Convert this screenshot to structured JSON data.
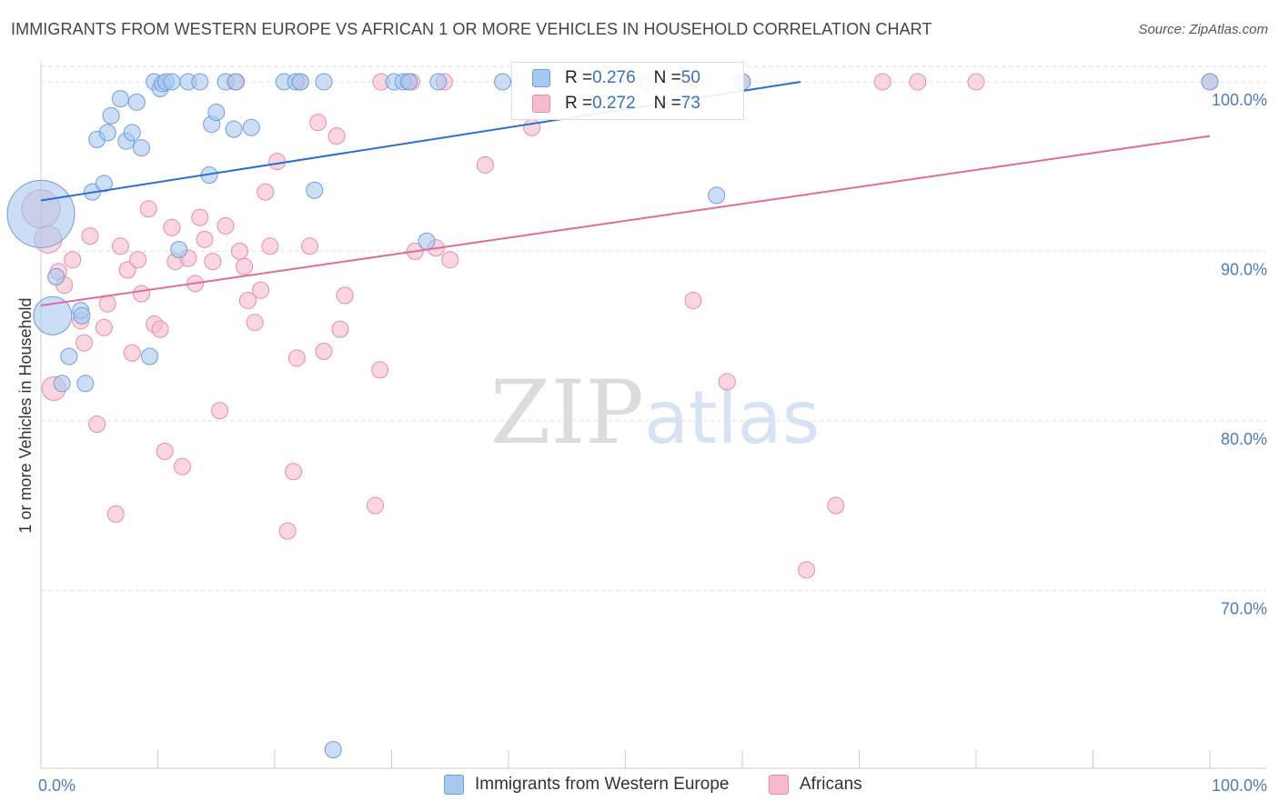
{
  "title": "IMMIGRANTS FROM WESTERN EUROPE VS AFRICAN 1 OR MORE VEHICLES IN HOUSEHOLD CORRELATION CHART",
  "source": "Source: ZipAtlas.com",
  "legend": {
    "rows": [
      {
        "r_label": "R = ",
        "r_value": "0.276",
        "n_label": "N = ",
        "n_value": "50"
      },
      {
        "r_label": "R = ",
        "r_value": "0.272",
        "n_label": "N = ",
        "n_value": "73"
      }
    ]
  },
  "bottom_legend": [
    "Immigrants from Western Europe",
    "Africans"
  ],
  "watermark": "ZIPatlas",
  "colors": {
    "blue_fill": "#a9c8ef",
    "blue_stroke": "#6d9ee0",
    "blue_line": "#2b6fcf",
    "pink_fill": "#f6bccb",
    "pink_stroke": "#e88ba6",
    "pink_line": "#e06c98",
    "grid": "#dddddd",
    "tick_text": "#4a7cc4"
  },
  "chart_data": {
    "type": "scatter",
    "title": "IMMIGRANTS FROM WESTERN EUROPE VS AFRICAN 1 OR MORE VEHICLES IN HOUSEHOLD CORRELATION CHART",
    "xlabel": "",
    "ylabel": "1 or more Vehicles in Household",
    "xlim": [
      0,
      100
    ],
    "ylim": [
      59.5,
      101.5
    ],
    "x_tick_labels": [
      "0.0%",
      "100.0%"
    ],
    "y_ticks": [
      70,
      80,
      90,
      100
    ],
    "y_tick_labels": [
      "70.0%",
      "80.0%",
      "90.0%",
      "100.0%"
    ],
    "grid": true,
    "series": [
      {
        "name": "Immigrants from Western Europe",
        "R": 0.276,
        "N": 50,
        "trend": {
          "x0": 0,
          "y0": 93.0,
          "x1": 65,
          "y1": 100.0
        },
        "points": [
          [
            0.0,
            92.2,
            1
          ],
          [
            1.0,
            86.2,
            0.6
          ],
          [
            1.3,
            88.5,
            0.3
          ],
          [
            1.8,
            82.2,
            0.3
          ],
          [
            2.4,
            83.8,
            0.3
          ],
          [
            3.4,
            86.5,
            0.3
          ],
          [
            3.5,
            86.2,
            0.3
          ],
          [
            3.8,
            82.2,
            0.3
          ],
          [
            4.4,
            93.5,
            0.3
          ],
          [
            4.8,
            96.6,
            0.3
          ],
          [
            5.4,
            94.0,
            0.3
          ],
          [
            5.7,
            97.0,
            0.3
          ],
          [
            6.0,
            98.0,
            0.3
          ],
          [
            6.8,
            99.0,
            0.3
          ],
          [
            7.3,
            96.5,
            0.3
          ],
          [
            7.8,
            97.0,
            0.3
          ],
          [
            8.2,
            98.8,
            0.3
          ],
          [
            8.6,
            96.1,
            0.3
          ],
          [
            9.3,
            83.8,
            0.3
          ],
          [
            9.7,
            100.0,
            0.3
          ],
          [
            10.2,
            99.6,
            0.3
          ],
          [
            10.4,
            99.9,
            0.3
          ],
          [
            10.7,
            100.0,
            0.3
          ],
          [
            11.2,
            100.0,
            0.3
          ],
          [
            11.8,
            90.1,
            0.3
          ],
          [
            12.6,
            100.0,
            0.3
          ],
          [
            13.6,
            100.0,
            0.3
          ],
          [
            14.4,
            94.5,
            0.3
          ],
          [
            14.6,
            97.5,
            0.3
          ],
          [
            15.0,
            98.2,
            0.3
          ],
          [
            15.8,
            100.0,
            0.3
          ],
          [
            16.5,
            97.2,
            0.3
          ],
          [
            16.7,
            100.0,
            0.3
          ],
          [
            18.0,
            97.3,
            0.3
          ],
          [
            20.8,
            100.0,
            0.3
          ],
          [
            21.8,
            100.0,
            0.3
          ],
          [
            22.2,
            100.0,
            0.3
          ],
          [
            23.4,
            93.6,
            0.3
          ],
          [
            24.2,
            100.0,
            0.3
          ],
          [
            25.0,
            60.6,
            0.3
          ],
          [
            30.2,
            100.0,
            0.3
          ],
          [
            31.0,
            100.0,
            0.3
          ],
          [
            31.5,
            100.0,
            0.3
          ],
          [
            33.0,
            90.6,
            0.3
          ],
          [
            34.0,
            100.0,
            0.3
          ],
          [
            39.5,
            100.0,
            0.3
          ],
          [
            52.0,
            100.0,
            0.3
          ],
          [
            57.8,
            93.3,
            0.3
          ],
          [
            60.0,
            100.0,
            0.3
          ],
          [
            100.0,
            100.0,
            0.3
          ]
        ]
      },
      {
        "name": "Africans",
        "R": 0.272,
        "N": 73,
        "trend": {
          "x0": 0,
          "y0": 86.8,
          "x1": 100,
          "y1": 96.8
        },
        "points": [
          [
            0.0,
            92.5,
            0.6
          ],
          [
            0.6,
            90.7,
            0.45
          ],
          [
            1.1,
            81.9,
            0.4
          ],
          [
            1.5,
            88.8,
            0.3
          ],
          [
            2.0,
            88.0,
            0.3
          ],
          [
            2.7,
            89.5,
            0.3
          ],
          [
            3.4,
            85.9,
            0.3
          ],
          [
            3.7,
            84.6,
            0.3
          ],
          [
            4.2,
            90.9,
            0.3
          ],
          [
            4.8,
            79.8,
            0.3
          ],
          [
            5.4,
            85.5,
            0.3
          ],
          [
            5.7,
            86.9,
            0.3
          ],
          [
            6.4,
            74.5,
            0.3
          ],
          [
            6.8,
            90.3,
            0.3
          ],
          [
            7.4,
            88.9,
            0.3
          ],
          [
            7.8,
            84.0,
            0.3
          ],
          [
            8.3,
            89.5,
            0.3
          ],
          [
            8.6,
            87.5,
            0.3
          ],
          [
            9.2,
            92.5,
            0.3
          ],
          [
            9.7,
            85.7,
            0.3
          ],
          [
            10.2,
            85.4,
            0.3
          ],
          [
            10.6,
            78.2,
            0.3
          ],
          [
            11.2,
            91.4,
            0.3
          ],
          [
            11.5,
            89.4,
            0.3
          ],
          [
            12.1,
            77.3,
            0.3
          ],
          [
            12.6,
            89.6,
            0.3
          ],
          [
            13.2,
            88.1,
            0.3
          ],
          [
            13.6,
            92.0,
            0.3
          ],
          [
            14.0,
            90.7,
            0.3
          ],
          [
            14.7,
            89.4,
            0.3
          ],
          [
            15.3,
            80.6,
            0.3
          ],
          [
            15.8,
            91.5,
            0.3
          ],
          [
            16.6,
            100.0,
            0.3
          ],
          [
            17.0,
            90.0,
            0.3
          ],
          [
            17.4,
            89.1,
            0.3
          ],
          [
            17.7,
            87.1,
            0.3
          ],
          [
            18.3,
            85.8,
            0.3
          ],
          [
            18.8,
            87.7,
            0.3
          ],
          [
            19.2,
            93.5,
            0.3
          ],
          [
            19.6,
            90.3,
            0.3
          ],
          [
            20.2,
            95.3,
            0.3
          ],
          [
            21.1,
            73.5,
            0.3
          ],
          [
            21.6,
            77.0,
            0.3
          ],
          [
            21.9,
            83.7,
            0.3
          ],
          [
            22.2,
            100.0,
            0.3
          ],
          [
            23.0,
            90.3,
            0.3
          ],
          [
            23.7,
            97.6,
            0.3
          ],
          [
            24.2,
            84.1,
            0.3
          ],
          [
            25.3,
            96.8,
            0.3
          ],
          [
            25.6,
            85.4,
            0.3
          ],
          [
            26.0,
            87.4,
            0.3
          ],
          [
            28.6,
            75.0,
            0.3
          ],
          [
            29.0,
            83.0,
            0.3
          ],
          [
            29.1,
            100.0,
            0.3
          ],
          [
            31.4,
            100.0,
            0.3
          ],
          [
            31.7,
            100.0,
            0.3
          ],
          [
            32.0,
            90.0,
            0.3
          ],
          [
            33.8,
            90.2,
            0.3
          ],
          [
            34.5,
            100.0,
            0.3
          ],
          [
            35.0,
            89.5,
            0.3
          ],
          [
            38.0,
            95.1,
            0.3
          ],
          [
            42.0,
            97.3,
            0.3
          ],
          [
            55.0,
            100.0,
            0.3
          ],
          [
            55.5,
            100.0,
            0.3
          ],
          [
            60.0,
            100.0,
            0.3
          ],
          [
            55.8,
            87.1,
            0.3
          ],
          [
            58.7,
            82.3,
            0.3
          ],
          [
            65.5,
            71.2,
            0.3
          ],
          [
            68.0,
            75.0,
            0.3
          ],
          [
            72.0,
            100.0,
            0.3
          ],
          [
            75.0,
            100.0,
            0.3
          ],
          [
            80.0,
            100.0,
            0.3
          ],
          [
            100.0,
            100.0,
            0.3
          ]
        ]
      }
    ]
  }
}
